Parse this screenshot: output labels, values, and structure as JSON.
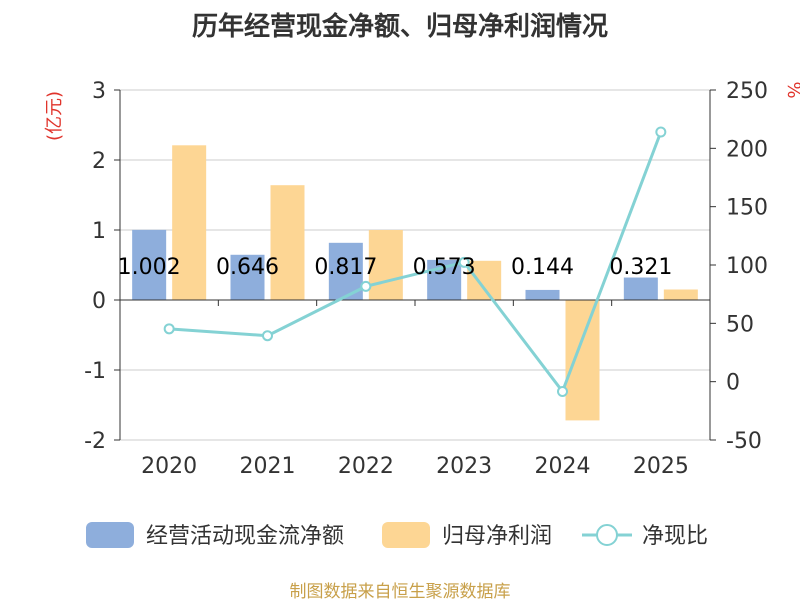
{
  "chart_data": {
    "type": "bar",
    "title": "历年经营现金净额、归母净利润情况",
    "categories": [
      "2020",
      "2021",
      "2022",
      "2023",
      "2024",
      "2025"
    ],
    "series": [
      {
        "name": "经营活动现金流净额",
        "type": "bar",
        "axis": "left",
        "color": "#8eaedc",
        "values": [
          1.002,
          0.646,
          0.817,
          0.573,
          0.144,
          0.321
        ],
        "labels": [
          "1.002",
          "0.646",
          "0.817",
          "0.573",
          "0.144",
          "0.321"
        ]
      },
      {
        "name": "归母净利润",
        "type": "bar",
        "axis": "left",
        "color": "#fdd694",
        "values": [
          2.21,
          1.64,
          1.0,
          0.56,
          -1.72,
          0.15
        ]
      },
      {
        "name": "净现比",
        "type": "line",
        "axis": "right",
        "color": "#84d2d4",
        "values": [
          45.3,
          39.4,
          81.7,
          102.3,
          -8.4,
          214.0
        ]
      }
    ],
    "y_left": {
      "label": "(亿元)",
      "ylim": [
        -2,
        3
      ],
      "ticks": [
        "3",
        "2",
        "1",
        "0",
        "-1",
        "-2"
      ],
      "tick_values": [
        3,
        2,
        1,
        0,
        -1,
        -2
      ]
    },
    "y_right": {
      "label": "%",
      "ylim": [
        -50,
        250
      ],
      "ticks": [
        "250",
        "200",
        "150",
        "100",
        "50",
        "0",
        "-50"
      ],
      "tick_values": [
        250,
        200,
        150,
        100,
        50,
        0,
        -50
      ]
    },
    "grid": true,
    "legend": "bottom"
  },
  "source": "制图数据来自恒生聚源数据库"
}
